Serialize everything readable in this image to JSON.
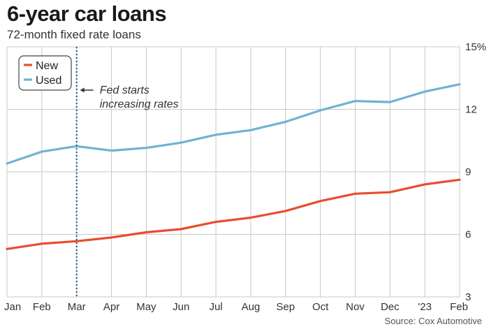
{
  "header": {
    "title": "6-year car loans",
    "subtitle": "72-month fixed rate loans"
  },
  "footer": {
    "source": "Source: Cox Automotive"
  },
  "annotation": {
    "line1": "Fed starts",
    "line2": "increasing rates",
    "at_category": "Mar"
  },
  "chart_data": {
    "type": "line",
    "title": "6-year car loans",
    "subtitle": "72-month fixed rate loans",
    "xlabel": "",
    "ylabel": "",
    "categories": [
      "Jan",
      "Feb",
      "Mar",
      "Apr",
      "May",
      "Jun",
      "Jul",
      "Aug",
      "Sep",
      "Oct",
      "Nov",
      "Dec",
      "'23",
      "Feb"
    ],
    "y_ticks": [
      3,
      6,
      9,
      12,
      15
    ],
    "y_tick_labels": [
      "3",
      "6",
      "9",
      "12",
      "15%"
    ],
    "ylim": [
      3,
      15
    ],
    "grid": true,
    "legend_position": "top-left",
    "series": [
      {
        "name": "New",
        "color": "#e84d2e",
        "values": [
          5.3,
          5.55,
          5.67,
          5.85,
          6.1,
          6.25,
          6.6,
          6.8,
          7.12,
          7.6,
          7.95,
          8.02,
          8.4,
          8.62
        ]
      },
      {
        "name": "Used",
        "color": "#6eb2d4",
        "values": [
          9.4,
          9.97,
          10.23,
          10.02,
          10.15,
          10.4,
          10.78,
          11.0,
          11.4,
          11.95,
          12.4,
          12.35,
          12.85,
          13.2
        ]
      }
    ]
  }
}
